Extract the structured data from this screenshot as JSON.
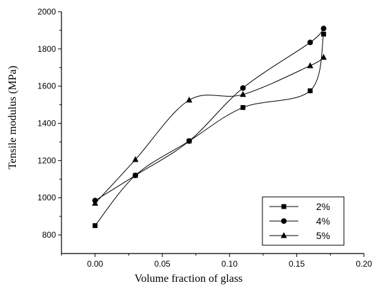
{
  "chart_data": {
    "type": "line",
    "xlabel": "Volume fraction of glass",
    "ylabel": "Tensile modulus (MPa)",
    "xlim": [
      -0.025,
      0.2
    ],
    "ylim": [
      700,
      2000
    ],
    "x_ticks": [
      0.0,
      0.05,
      0.1,
      0.15,
      0.2
    ],
    "x_tick_labels": [
      "0.00",
      "0.05",
      "0.10",
      "0.15",
      "0.20"
    ],
    "y_ticks": [
      800,
      1000,
      1200,
      1400,
      1600,
      1800,
      2000
    ],
    "y_tick_labels": [
      "800",
      "1000",
      "1200",
      "1400",
      "1600",
      "1800",
      "2000"
    ],
    "grid": false,
    "legend_position": "bottom-right",
    "series": [
      {
        "name": "2%",
        "marker": "square",
        "x": [
          0.0,
          0.03,
          0.07,
          0.11,
          0.16,
          0.17
        ],
        "y": [
          850,
          1120,
          1305,
          1485,
          1575,
          1880
        ]
      },
      {
        "name": "4%",
        "marker": "circle",
        "x": [
          0.0,
          0.03,
          0.07,
          0.11,
          0.16,
          0.17
        ],
        "y": [
          985,
          1120,
          1305,
          1590,
          1835,
          1910
        ]
      },
      {
        "name": "5%",
        "marker": "triangle",
        "x": [
          0.0,
          0.03,
          0.07,
          0.11,
          0.16,
          0.17
        ],
        "y": [
          970,
          1205,
          1525,
          1555,
          1710,
          1755
        ]
      }
    ]
  }
}
